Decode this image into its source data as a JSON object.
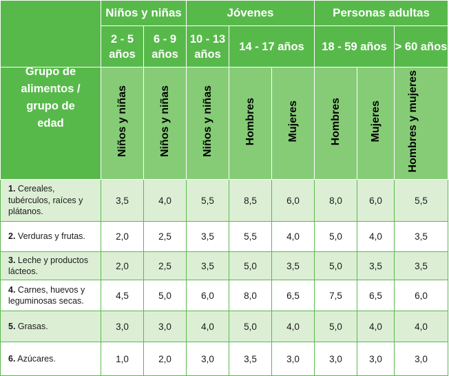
{
  "header": {
    "corner_label": "Grupo de alimentos / grupo de edad",
    "groups": [
      {
        "label": "Niños y niñas"
      },
      {
        "label": "Jóvenes"
      },
      {
        "label": "Personas adultas"
      }
    ],
    "ranges": [
      {
        "label": "2 - 5 años"
      },
      {
        "label": "6 - 9 años"
      },
      {
        "label": "10 - 13 años"
      },
      {
        "label": "14 - 17 años"
      },
      {
        "label": "18 - 59 años"
      },
      {
        "label": "> 60 años"
      }
    ],
    "subgroups": [
      {
        "label": "Niños y niñas"
      },
      {
        "label": "Niños y niñas"
      },
      {
        "label": "Niños y niñas"
      },
      {
        "label": "Hombres"
      },
      {
        "label": "Mujeres"
      },
      {
        "label": "Hombres"
      },
      {
        "label": "Mujeres"
      },
      {
        "label": "Hombres y mujeres"
      }
    ]
  },
  "rows": [
    {
      "num": "1.",
      "label": "Cereales, tubérculos, raíces y plátanos.",
      "values": [
        "3,5",
        "4,0",
        "5,5",
        "8,5",
        "6,0",
        "8,0",
        "6,0",
        "5,5"
      ]
    },
    {
      "num": "2.",
      "label": "Verduras y frutas.",
      "values": [
        "2,0",
        "2,5",
        "3,5",
        "5,5",
        "4,0",
        "5,0",
        "4,0",
        "3,5"
      ]
    },
    {
      "num": "3.",
      "label": "Leche y productos lácteos.",
      "values": [
        "2,0",
        "2,5",
        "3,5",
        "5,0",
        "3,5",
        "5,0",
        "3,5",
        "3,5"
      ]
    },
    {
      "num": "4.",
      "label": "Carnes, huevos y leguminosas secas.",
      "values": [
        "4,5",
        "5,0",
        "6,0",
        "8,0",
        "6,5",
        "7,5",
        "6,5",
        "6,0"
      ]
    },
    {
      "num": "5.",
      "label": "Grasas.",
      "values": [
        "3,0",
        "3,0",
        "4,0",
        "5,0",
        "4,0",
        "5,0",
        "4,0",
        "4,0"
      ]
    },
    {
      "num": "6.",
      "label": "Azúcares.",
      "values": [
        "1,0",
        "2,0",
        "3,0",
        "3,5",
        "3,0",
        "3,0",
        "3,0",
        "3,0"
      ]
    }
  ],
  "colors": {
    "header_dark": "#58b94b",
    "header_light": "#86cc77",
    "row_light": "#dcefd5"
  }
}
